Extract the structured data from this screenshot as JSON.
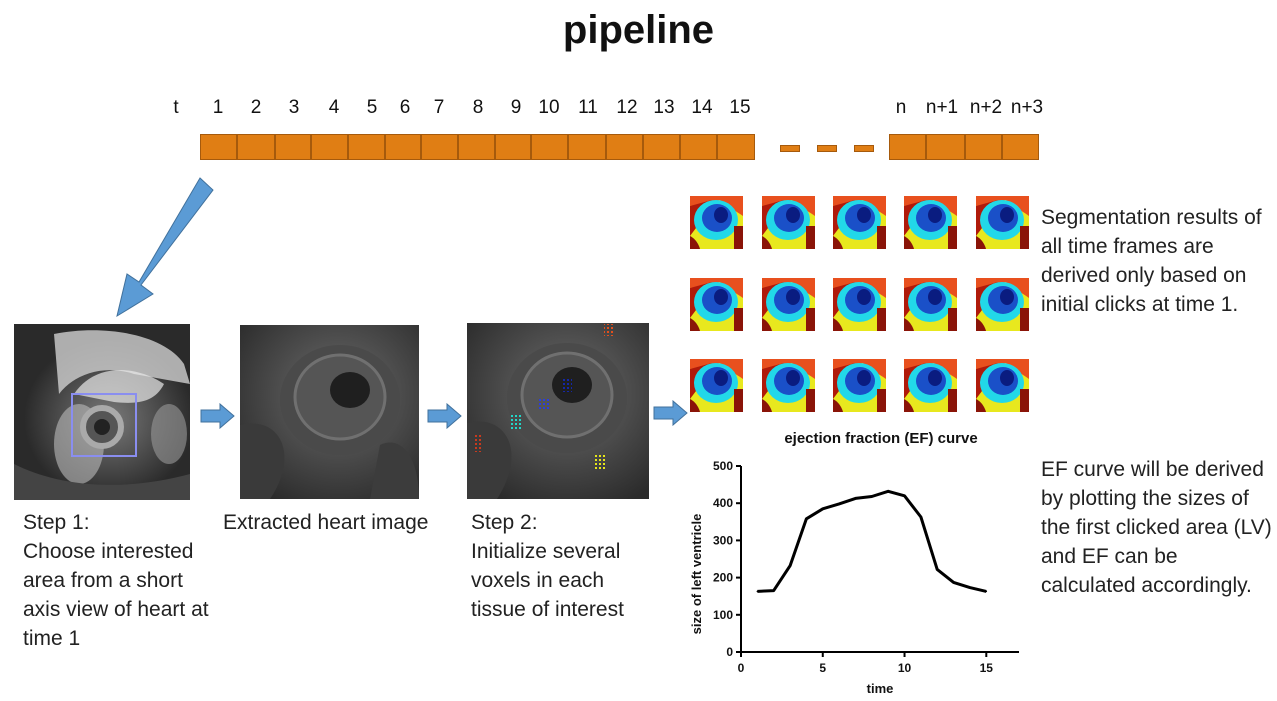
{
  "title": "pipeline",
  "timeline": {
    "t_label": "t",
    "labels": [
      "1",
      "2",
      "3",
      "4",
      "5",
      "6",
      "7",
      "8",
      "9",
      "10",
      "11",
      "12",
      "13",
      "14",
      "15",
      "n",
      "n+1",
      "n+2",
      "n+3"
    ]
  },
  "steps": {
    "step1": "Step 1:\nChoose interested area from a short axis view of heart at time 1",
    "extracted": "Extracted heart image",
    "step2": "Step 2:\nInitialize several voxels in each tissue of interest"
  },
  "segmentation_text": "Segmentation results of all time frames are derived only based on initial clicks at time 1.",
  "ef_text": "EF curve will be derived by plotting the sizes of the first clicked area (LV) and EF can be calculated accordingly.",
  "colors": {
    "frame": "#E07E14",
    "arrow": "#5B9BD5"
  },
  "chart_data": {
    "type": "line",
    "title": "ejection fraction (EF) curve",
    "xlabel": "time",
    "ylabel": "size of left ventricle",
    "xlim": [
      0,
      17
    ],
    "ylim": [
      0,
      500
    ],
    "xticks": [
      "0",
      "5",
      "10",
      "15"
    ],
    "yticks": [
      "0",
      "100",
      "200",
      "300",
      "400",
      "500"
    ],
    "x": [
      1,
      2,
      3,
      4,
      5,
      6,
      7,
      8,
      9,
      10,
      11,
      12,
      13,
      14,
      15
    ],
    "y": [
      163,
      165,
      232,
      358,
      385,
      398,
      413,
      418,
      432,
      420,
      363,
      222,
      187,
      173,
      163
    ]
  }
}
